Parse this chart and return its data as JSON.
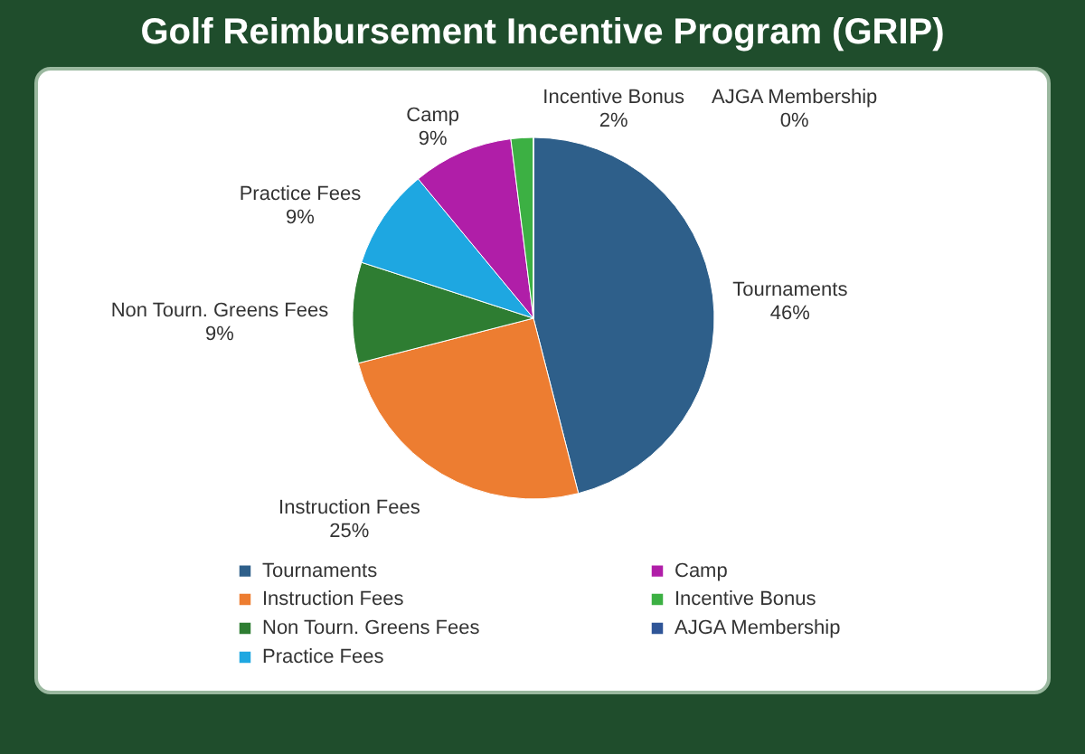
{
  "chart_data": {
    "type": "pie",
    "title": "Golf Reimbursement Incentive Program (GRIP)",
    "categories": [
      "Tournaments",
      "Instruction Fees",
      "Non Tourn. Greens Fees",
      "Practice Fees",
      "Camp",
      "Incentive Bonus",
      "AJGA Membership"
    ],
    "values": [
      46,
      25,
      9,
      9,
      9,
      2,
      0
    ],
    "value_labels": [
      "46%",
      "25%",
      "9%",
      "9%",
      "9%",
      "2%",
      "0%"
    ],
    "colors": [
      "#2e5f8a",
      "#ed7d31",
      "#2e7d32",
      "#1ea7e1",
      "#b01ea8",
      "#3cb043",
      "#2f5597"
    ],
    "legend": "bottom"
  }
}
